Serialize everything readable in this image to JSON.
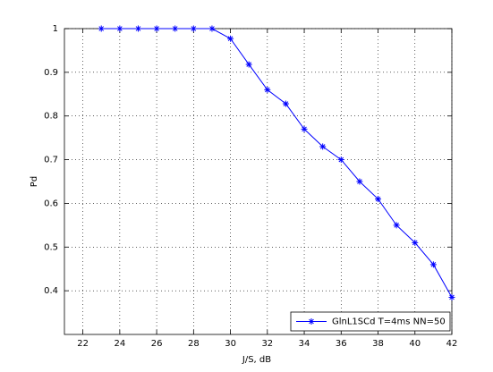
{
  "chart_data": {
    "type": "line",
    "xlabel": "J/S, dB",
    "ylabel": "Pd",
    "x": [
      23,
      24,
      25,
      26,
      27,
      28,
      29,
      30,
      31,
      32,
      33,
      34,
      35,
      36,
      37,
      38,
      39,
      40,
      41,
      42
    ],
    "series": [
      {
        "name": "GlnL1SCd T=4ms NN=50",
        "color": "#0000ff",
        "marker": "*",
        "values": [
          1,
          1,
          1,
          1,
          1,
          1,
          1,
          0.977,
          0.918,
          0.86,
          0.828,
          0.77,
          0.73,
          0.7,
          0.65,
          0.61,
          0.55,
          0.51,
          0.46,
          0.385
        ]
      }
    ],
    "xlim": [
      21,
      42
    ],
    "ylim": [
      0.3,
      1
    ],
    "xticks": [
      22,
      24,
      26,
      28,
      30,
      32,
      34,
      36,
      38,
      40,
      42
    ],
    "yticks": [
      0.4,
      0.5,
      0.6,
      0.7,
      0.8,
      0.9,
      1
    ],
    "grid": true,
    "legend": "lower right"
  }
}
